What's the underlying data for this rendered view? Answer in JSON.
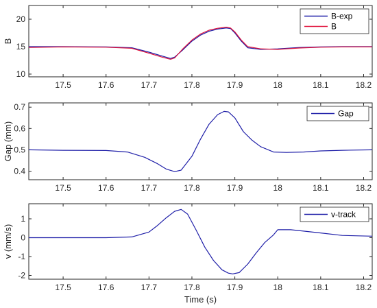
{
  "chart_data": [
    {
      "type": "line",
      "ylabel": "B",
      "xlabel": "",
      "xlim": [
        17.42,
        18.22
      ],
      "ylim": [
        9.5,
        22.5
      ],
      "xticks": [
        17.5,
        17.6,
        17.7,
        17.8,
        17.9,
        18,
        18.1,
        18.2
      ],
      "xtick_labels": [
        "17.5",
        "17.6",
        "17.7",
        "17.8",
        "17.9",
        "18",
        "18.1",
        "18.2"
      ],
      "yticks": [
        10,
        15,
        20
      ],
      "ytick_labels": [
        "10",
        "15",
        "20"
      ],
      "legend_position": "top-right",
      "series": [
        {
          "name": "B-exp",
          "color": "#1f1fa8",
          "x": [
            17.42,
            17.5,
            17.6,
            17.66,
            17.7,
            17.73,
            17.75,
            17.76,
            17.78,
            17.8,
            17.82,
            17.84,
            17.86,
            17.88,
            17.89,
            17.9,
            17.915,
            17.93,
            17.96,
            18.0,
            18.05,
            18.1,
            18.15,
            18.22
          ],
          "y": [
            15.0,
            15.0,
            14.95,
            14.8,
            14.0,
            13.3,
            12.85,
            13.1,
            14.5,
            16.0,
            17.1,
            17.8,
            18.2,
            18.4,
            18.3,
            17.5,
            16.0,
            14.8,
            14.5,
            14.6,
            14.85,
            14.95,
            15.0,
            15.0
          ]
        },
        {
          "name": "B",
          "color": "#e0103a",
          "x": [
            17.42,
            17.5,
            17.6,
            17.66,
            17.7,
            17.73,
            17.75,
            17.76,
            17.78,
            17.8,
            17.82,
            17.84,
            17.86,
            17.88,
            17.89,
            17.9,
            17.915,
            17.93,
            17.96,
            18.0,
            18.05,
            18.1,
            18.15,
            18.22
          ],
          "y": [
            14.85,
            14.95,
            14.9,
            14.7,
            13.8,
            13.1,
            12.7,
            12.95,
            14.7,
            16.2,
            17.3,
            18.0,
            18.35,
            18.55,
            18.4,
            17.7,
            16.2,
            15.0,
            14.6,
            14.5,
            14.75,
            14.9,
            14.95,
            14.95
          ]
        }
      ]
    },
    {
      "type": "line",
      "ylabel": "Gap (mm)",
      "xlabel": "",
      "xlim": [
        17.42,
        18.22
      ],
      "ylim": [
        0.36,
        0.72
      ],
      "xticks": [
        17.5,
        17.6,
        17.7,
        17.8,
        17.9,
        18,
        18.1,
        18.2
      ],
      "xtick_labels": [
        "17.5",
        "17.6",
        "17.7",
        "17.8",
        "17.9",
        "18",
        "18.1",
        "18.2"
      ],
      "yticks": [
        0.4,
        0.5,
        0.6,
        0.7
      ],
      "ytick_labels": [
        "0.4",
        "0.5",
        "0.6",
        "0.7"
      ],
      "legend_position": "top-right",
      "series": [
        {
          "name": "Gap",
          "color": "#1f1fa8",
          "x": [
            17.42,
            17.5,
            17.6,
            17.65,
            17.69,
            17.72,
            17.74,
            17.76,
            17.775,
            17.8,
            17.82,
            17.84,
            17.86,
            17.875,
            17.885,
            17.9,
            17.92,
            17.94,
            17.96,
            17.99,
            18.02,
            18.06,
            18.1,
            18.15,
            18.22
          ],
          "y": [
            0.5,
            0.498,
            0.497,
            0.49,
            0.465,
            0.435,
            0.41,
            0.398,
            0.405,
            0.47,
            0.55,
            0.62,
            0.665,
            0.68,
            0.678,
            0.65,
            0.585,
            0.545,
            0.515,
            0.49,
            0.488,
            0.49,
            0.495,
            0.498,
            0.5
          ]
        }
      ]
    },
    {
      "type": "line",
      "ylabel": "v (mm/s)",
      "xlabel": "Time (s)",
      "xlim": [
        17.42,
        18.22
      ],
      "ylim": [
        -2.2,
        1.8
      ],
      "xticks": [
        17.5,
        17.6,
        17.7,
        17.8,
        17.9,
        18,
        18.1,
        18.2
      ],
      "xtick_labels": [
        "17.5",
        "17.6",
        "17.7",
        "17.8",
        "17.9",
        "18",
        "18.1",
        "18.2"
      ],
      "yticks": [
        -2,
        -1,
        0,
        1
      ],
      "ytick_labels": [
        "-2",
        "-1",
        "0",
        "1"
      ],
      "legend_position": "top-right",
      "series": [
        {
          "name": "v-track",
          "color": "#1f1fa8",
          "x": [
            17.42,
            17.5,
            17.6,
            17.66,
            17.7,
            17.72,
            17.74,
            17.76,
            17.775,
            17.79,
            17.81,
            17.83,
            17.85,
            17.87,
            17.885,
            17.895,
            17.91,
            17.93,
            17.95,
            17.97,
            17.99,
            18.0,
            18.03,
            18.06,
            18.1,
            18.15,
            18.22
          ],
          "y": [
            0.0,
            0.0,
            0.0,
            0.04,
            0.3,
            0.65,
            1.05,
            1.4,
            1.5,
            1.25,
            0.4,
            -0.5,
            -1.2,
            -1.7,
            -1.88,
            -1.92,
            -1.85,
            -1.4,
            -0.8,
            -0.25,
            0.15,
            0.42,
            0.42,
            0.35,
            0.25,
            0.12,
            0.08
          ]
        }
      ]
    }
  ]
}
